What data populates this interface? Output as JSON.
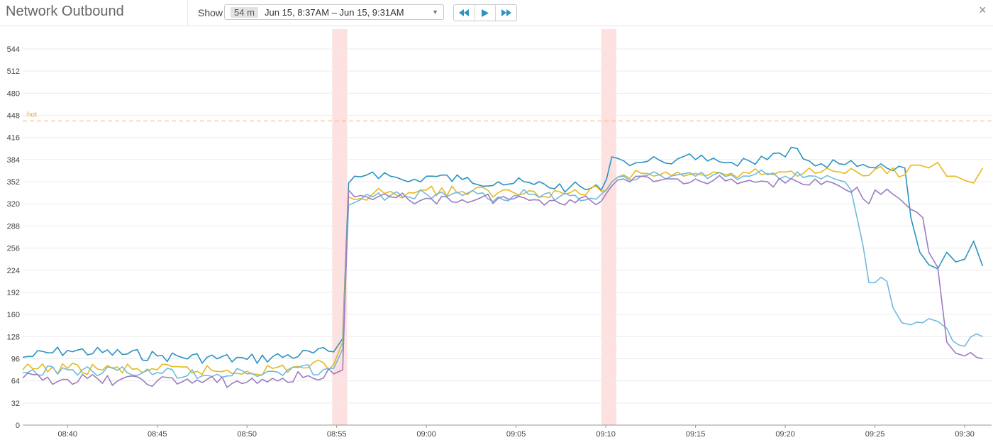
{
  "header": {
    "title": "Network Outbound",
    "show_label": "Show",
    "range_badge": "54 m",
    "range_text": "Jun 15, 8:37AM – Jun 15, 9:31AM",
    "controls": [
      "rewind-icon",
      "play-icon",
      "fast-forward-icon"
    ],
    "close_icon": "×"
  },
  "chart_data": {
    "type": "line",
    "x_unit": "time (HH:MM, Jun 15)",
    "xlim": [
      "08:37:30",
      "09:31:30"
    ],
    "x_ticks": [
      "08:40",
      "08:45",
      "08:50",
      "08:55",
      "09:00",
      "09:05",
      "09:10",
      "09:15",
      "09:20",
      "09:25",
      "09:30"
    ],
    "ylim": [
      0,
      544
    ],
    "y_ticks": [
      0,
      32,
      64,
      96,
      128,
      160,
      192,
      224,
      256,
      288,
      320,
      352,
      384,
      416,
      448,
      480,
      512,
      544
    ],
    "grid": true,
    "threshold": {
      "label": "hot",
      "value": 440,
      "color": "#f5b26b"
    },
    "event_markers": [
      {
        "start": "08:54:45",
        "end": "08:55:35"
      },
      {
        "start": "09:09:45",
        "end": "09:10:35"
      }
    ],
    "series": [
      {
        "color": "#2b93c0",
        "x": [
          "08:37:30",
          "08:40:00",
          "08:45:00",
          "08:50:00",
          "08:54:50",
          "08:55:20",
          "08:55:40",
          "08:56:00",
          "08:57:00",
          "08:58:00",
          "08:59:00",
          "09:00:00",
          "09:02:00",
          "09:04:00",
          "09:06:00",
          "09:08:00",
          "09:09:45",
          "09:10:20",
          "09:11:00",
          "09:12:00",
          "09:13:00",
          "09:14:00",
          "09:15:00",
          "09:16:00",
          "09:17:00",
          "09:18:00",
          "09:19:00",
          "09:20:00",
          "09:20:40",
          "09:21:00",
          "09:22:00",
          "09:23:00",
          "09:24:00",
          "09:25:00",
          "09:26:00",
          "09:26:40",
          "09:27:00",
          "09:27:30",
          "09:28:00",
          "09:28:30",
          "09:29:00",
          "09:29:30",
          "09:30:00",
          "09:30:30",
          "09:31:00"
        ],
        "y": [
          98,
          108,
          100,
          95,
          106,
          125,
          350,
          360,
          366,
          360,
          352,
          360,
          355,
          352,
          348,
          344,
          340,
          388,
          382,
          380,
          383,
          385,
          384,
          386,
          380,
          382,
          384,
          388,
          400,
          385,
          378,
          378,
          374,
          372,
          368,
          372,
          300,
          250,
          232,
          226,
          250,
          236,
          240,
          266,
          230
        ]
      },
      {
        "color": "#e6b81e",
        "x": [
          "08:37:30",
          "08:40:00",
          "08:45:00",
          "08:50:00",
          "08:54:50",
          "08:55:20",
          "08:55:40",
          "08:56:00",
          "08:57:00",
          "08:58:00",
          "08:59:00",
          "09:00:00",
          "09:02:00",
          "09:04:00",
          "09:06:00",
          "09:08:00",
          "09:09:45",
          "09:10:20",
          "09:11:00",
          "09:12:00",
          "09:13:00",
          "09:14:00",
          "09:15:00",
          "09:16:00",
          "09:17:00",
          "09:18:00",
          "09:19:00",
          "09:20:00",
          "09:21:00",
          "09:22:00",
          "09:23:00",
          "09:24:00",
          "09:25:00",
          "09:26:00",
          "09:26:40",
          "09:27:00",
          "09:27:30",
          "09:28:00",
          "09:28:30",
          "09:29:00",
          "09:29:30",
          "09:30:00",
          "09:30:30",
          "09:31:00"
        ],
        "y": [
          80,
          82,
          80,
          78,
          88,
          120,
          330,
          326,
          334,
          338,
          336,
          340,
          338,
          336,
          338,
          336,
          338,
          352,
          362,
          364,
          362,
          366,
          364,
          366,
          364,
          364,
          364,
          366,
          364,
          366,
          366,
          366,
          370,
          372,
          362,
          376,
          376,
          372,
          380,
          360,
          360,
          354,
          350,
          372
        ]
      },
      {
        "color": "#6fbbde",
        "x": [
          "08:37:30",
          "08:40:00",
          "08:45:00",
          "08:50:00",
          "08:54:50",
          "08:55:20",
          "08:55:40",
          "08:56:00",
          "08:57:00",
          "08:58:00",
          "08:59:00",
          "09:00:00",
          "09:02:00",
          "09:04:00",
          "09:06:00",
          "09:08:00",
          "09:09:45",
          "09:10:20",
          "09:11:00",
          "09:12:00",
          "09:13:00",
          "09:14:00",
          "09:15:00",
          "09:16:00",
          "09:17:00",
          "09:18:00",
          "09:19:00",
          "09:20:00",
          "09:21:00",
          "09:22:00",
          "09:23:00",
          "09:23:40",
          "09:24:00",
          "09:24:20",
          "09:24:40",
          "09:25:00",
          "09:25:40",
          "09:26:00",
          "09:26:30",
          "09:27:00",
          "09:27:40",
          "09:28:00",
          "09:28:30",
          "09:29:00",
          "09:29:40",
          "09:30:00",
          "09:30:40",
          "09:31:00"
        ],
        "y": [
          76,
          80,
          76,
          74,
          82,
          110,
          318,
          322,
          330,
          332,
          330,
          334,
          332,
          330,
          334,
          332,
          334,
          352,
          360,
          360,
          362,
          362,
          360,
          362,
          362,
          360,
          362,
          360,
          358,
          356,
          354,
          340,
          300,
          260,
          206,
          206,
          208,
          170,
          148,
          145,
          148,
          154,
          150,
          140,
          116,
          114,
          132,
          128
        ]
      },
      {
        "color": "#9b7cc0",
        "x": [
          "08:37:30",
          "08:40:00",
          "08:45:00",
          "08:50:00",
          "08:54:50",
          "08:55:20",
          "08:55:40",
          "08:56:00",
          "08:57:00",
          "08:58:00",
          "08:59:00",
          "09:00:00",
          "09:02:00",
          "09:04:00",
          "09:06:00",
          "09:08:00",
          "09:09:45",
          "09:10:20",
          "09:11:00",
          "09:12:00",
          "09:13:00",
          "09:14:00",
          "09:15:00",
          "09:16:00",
          "09:17:00",
          "09:18:00",
          "09:19:00",
          "09:20:00",
          "09:21:00",
          "09:22:00",
          "09:23:00",
          "09:24:00",
          "09:24:40",
          "09:25:00",
          "09:26:00",
          "09:26:40",
          "09:27:00",
          "09:27:40",
          "09:28:00",
          "09:28:30",
          "09:29:00",
          "09:29:30",
          "09:30:00",
          "09:30:40",
          "09:31:00"
        ],
        "y": [
          68,
          66,
          64,
          62,
          74,
          80,
          340,
          330,
          326,
          330,
          326,
          328,
          326,
          328,
          326,
          326,
          324,
          346,
          356,
          360,
          354,
          356,
          356,
          354,
          356,
          354,
          352,
          350,
          348,
          348,
          346,
          344,
          320,
          340,
          334,
          320,
          312,
          300,
          250,
          228,
          120,
          104,
          100,
          98,
          96
        ]
      }
    ]
  }
}
